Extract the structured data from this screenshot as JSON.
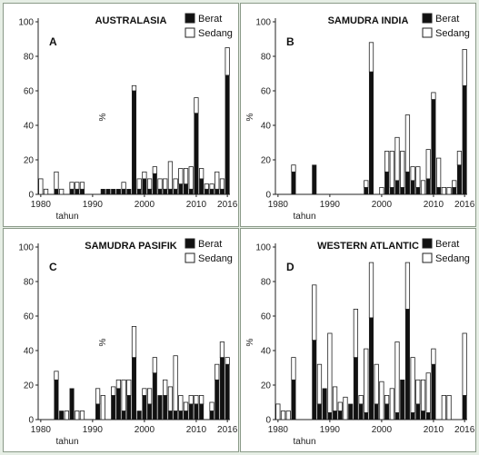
{
  "colors": {
    "berat": "#111111",
    "sedang": "#ffffff",
    "outline": "#222222",
    "frame": "#8a9a88"
  },
  "chart_data": [
    {
      "type": "bar",
      "stacked": true,
      "letter": "A",
      "title": "AUSTRALASIA",
      "xlabel": "tahun",
      "ylabel": "%",
      "ylim": [
        0,
        100
      ],
      "yticks": [
        0,
        20,
        40,
        60,
        80,
        100
      ],
      "xticks": [
        "1980",
        "1990",
        "2000",
        "2010",
        "2016"
      ],
      "xlim": [
        1979.5,
        2016.5
      ],
      "legend": [
        "Berat",
        "Sedang"
      ],
      "x": [
        1980,
        1981,
        1982,
        1983,
        1984,
        1985,
        1986,
        1987,
        1988,
        1989,
        1990,
        1991,
        1992,
        1993,
        1994,
        1995,
        1996,
        1997,
        1998,
        1999,
        2000,
        2001,
        2002,
        2003,
        2004,
        2005,
        2006,
        2007,
        2008,
        2009,
        2010,
        2011,
        2012,
        2013,
        2014,
        2015,
        2016
      ],
      "series": [
        {
          "name": "Berat",
          "values": [
            0,
            0,
            0,
            3,
            0,
            0,
            3,
            3,
            3,
            0,
            0,
            0,
            3,
            3,
            3,
            3,
            3,
            3,
            60,
            3,
            9,
            3,
            12,
            3,
            3,
            3,
            3,
            6,
            6,
            3,
            47,
            9,
            3,
            3,
            3,
            3,
            69
          ]
        },
        {
          "name": "Sedang",
          "values": [
            9,
            3,
            0,
            10,
            3,
            0,
            4,
            4,
            4,
            0,
            0,
            0,
            0,
            0,
            0,
            0,
            4,
            0,
            3,
            6,
            4,
            6,
            4,
            6,
            6,
            16,
            6,
            9,
            9,
            13,
            9,
            6,
            3,
            3,
            10,
            6,
            16
          ]
        }
      ]
    },
    {
      "type": "bar",
      "stacked": true,
      "letter": "B",
      "title": "SAMUDRA INDIA",
      "xlabel": "tahun",
      "ylabel": "%",
      "ylim": [
        0,
        100
      ],
      "yticks": [
        0,
        20,
        40,
        60,
        80,
        100
      ],
      "xticks": [
        "1980",
        "1990",
        "2000",
        "2010",
        "2016"
      ],
      "xlim": [
        1979.5,
        2016.5
      ],
      "legend": [
        "Berat",
        "Sedang"
      ],
      "x": [
        1980,
        1981,
        1982,
        1983,
        1984,
        1985,
        1986,
        1987,
        1988,
        1989,
        1990,
        1991,
        1992,
        1993,
        1994,
        1995,
        1996,
        1997,
        1998,
        1999,
        2000,
        2001,
        2002,
        2003,
        2004,
        2005,
        2006,
        2007,
        2008,
        2009,
        2010,
        2011,
        2012,
        2013,
        2014,
        2015,
        2016
      ],
      "series": [
        {
          "name": "Berat",
          "values": [
            0,
            0,
            0,
            13,
            0,
            0,
            0,
            17,
            0,
            0,
            0,
            0,
            0,
            0,
            0,
            0,
            0,
            4,
            71,
            0,
            0,
            13,
            4,
            8,
            4,
            13,
            8,
            4,
            0,
            9,
            55,
            4,
            0,
            0,
            4,
            17,
            63
          ]
        },
        {
          "name": "Sedang",
          "values": [
            0,
            0,
            0,
            4,
            0,
            0,
            0,
            0,
            0,
            0,
            0,
            0,
            0,
            0,
            0,
            0,
            0,
            4,
            17,
            0,
            4,
            12,
            21,
            25,
            21,
            33,
            8,
            12,
            8,
            17,
            4,
            17,
            4,
            4,
            4,
            8,
            21
          ]
        }
      ]
    },
    {
      "type": "bar",
      "stacked": true,
      "letter": "C",
      "title": "SAMUDRA PASIFIK",
      "xlabel": "tahun",
      "ylabel": "%",
      "ylim": [
        0,
        100
      ],
      "yticks": [
        0,
        20,
        40,
        60,
        80,
        100
      ],
      "xticks": [
        "1980",
        "1990",
        "2000",
        "2010",
        "2016"
      ],
      "xlim": [
        1979.5,
        2016.5
      ],
      "legend": [
        "Berat",
        "Sedang"
      ],
      "x": [
        1980,
        1981,
        1982,
        1983,
        1984,
        1985,
        1986,
        1987,
        1988,
        1989,
        1990,
        1991,
        1992,
        1993,
        1994,
        1995,
        1996,
        1997,
        1998,
        1999,
        2000,
        2001,
        2002,
        2003,
        2004,
        2005,
        2006,
        2007,
        2008,
        2009,
        2010,
        2011,
        2012,
        2013,
        2014,
        2015,
        2016
      ],
      "series": [
        {
          "name": "Berat",
          "values": [
            0,
            0,
            0,
            23,
            5,
            0,
            18,
            0,
            0,
            0,
            0,
            9,
            0,
            0,
            14,
            18,
            5,
            14,
            36,
            5,
            14,
            9,
            27,
            14,
            14,
            5,
            5,
            5,
            5,
            9,
            9,
            9,
            0,
            5,
            23,
            36,
            32
          ]
        },
        {
          "name": "Sedang",
          "values": [
            0,
            0,
            0,
            5,
            0,
            5,
            0,
            5,
            5,
            0,
            0,
            9,
            14,
            0,
            5,
            5,
            18,
            9,
            18,
            0,
            4,
            9,
            9,
            0,
            9,
            14,
            32,
            9,
            5,
            5,
            5,
            5,
            0,
            5,
            9,
            9,
            4
          ]
        }
      ]
    },
    {
      "type": "bar",
      "stacked": true,
      "letter": "D",
      "title": "WESTERN ATLANTIC",
      "xlabel": "tahun",
      "ylabel": "%",
      "ylim": [
        0,
        100
      ],
      "yticks": [
        0,
        20,
        40,
        60,
        80,
        100
      ],
      "xticks": [
        "1980",
        "1990",
        "2000",
        "2010",
        "2016"
      ],
      "xlim": [
        1979.5,
        2016.5
      ],
      "legend": [
        "Berat",
        "Sedang"
      ],
      "x": [
        1980,
        1981,
        1982,
        1983,
        1984,
        1985,
        1986,
        1987,
        1988,
        1989,
        1990,
        1991,
        1992,
        1993,
        1994,
        1995,
        1996,
        1997,
        1998,
        1999,
        2000,
        2001,
        2002,
        2003,
        2004,
        2005,
        2006,
        2007,
        2008,
        2009,
        2010,
        2011,
        2012,
        2013,
        2014,
        2015,
        2016
      ],
      "series": [
        {
          "name": "Berat",
          "values": [
            0,
            0,
            0,
            23,
            0,
            0,
            0,
            46,
            9,
            18,
            4,
            5,
            5,
            0,
            9,
            36,
            9,
            4,
            59,
            9,
            0,
            9,
            0,
            4,
            23,
            64,
            4,
            9,
            5,
            4,
            32,
            0,
            0,
            0,
            0,
            0,
            14
          ]
        },
        {
          "name": "Sedang",
          "values": [
            9,
            5,
            5,
            13,
            0,
            0,
            0,
            32,
            23,
            0,
            46,
            14,
            5,
            13,
            0,
            28,
            5,
            37,
            32,
            23,
            22,
            5,
            18,
            41,
            0,
            27,
            32,
            14,
            18,
            23,
            9,
            0,
            14,
            14,
            0,
            0,
            36
          ]
        }
      ]
    }
  ]
}
